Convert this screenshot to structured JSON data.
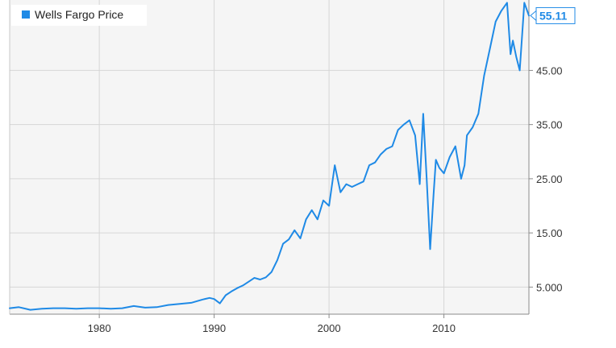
{
  "colors": {
    "line": "#1f8ae6",
    "plot_bg": "#f5f5f5",
    "grid": "#d6d6d6",
    "frame": "#8a8a8a"
  },
  "chart_data": {
    "type": "line",
    "title": "",
    "xlabel": "",
    "ylabel": "",
    "legend": {
      "position": "top-left",
      "entries": [
        "Wells Fargo Price"
      ]
    },
    "grid": true,
    "xlim": [
      1972.2,
      2017.4
    ],
    "ylim": [
      0,
      58
    ],
    "x_ticks": [
      1980,
      1990,
      2000,
      2010
    ],
    "x_tick_labels": [
      "1980",
      "1990",
      "2000",
      "2010"
    ],
    "y_ticks": [
      5,
      15,
      25,
      35,
      45
    ],
    "y_tick_labels": [
      "5.000",
      "15.00",
      "25.00",
      "35.00",
      "45.00"
    ],
    "last_value_label": "55.11",
    "series": [
      {
        "name": "Wells Fargo Price",
        "x": [
          1972.2,
          1973.0,
          1974.0,
          1975.0,
          1976.0,
          1977.0,
          1978.0,
          1979.0,
          1980.0,
          1981.0,
          1982.0,
          1983.0,
          1984.0,
          1985.0,
          1986.0,
          1987.0,
          1988.0,
          1989.0,
          1989.6,
          1990.0,
          1990.5,
          1991.0,
          1991.5,
          1992.0,
          1992.5,
          1993.0,
          1993.5,
          1994.0,
          1994.5,
          1995.0,
          1995.5,
          1996.0,
          1996.5,
          1997.0,
          1997.5,
          1998.0,
          1998.5,
          1999.0,
          1999.5,
          2000.0,
          2000.5,
          2001.0,
          2001.5,
          2002.0,
          2002.5,
          2003.0,
          2003.5,
          2004.0,
          2004.5,
          2005.0,
          2005.5,
          2006.0,
          2006.5,
          2007.0,
          2007.5,
          2007.9,
          2008.2,
          2008.5,
          2008.8,
          2009.1,
          2009.3,
          2009.6,
          2010.0,
          2010.5,
          2011.0,
          2011.5,
          2011.8,
          2012.0,
          2012.5,
          2013.0,
          2013.5,
          2014.0,
          2014.5,
          2015.0,
          2015.5,
          2015.8,
          2016.0,
          2016.3,
          2016.6,
          2017.0,
          2017.4
        ],
        "y": [
          1.1,
          1.3,
          0.8,
          1.0,
          1.1,
          1.1,
          1.0,
          1.1,
          1.1,
          1.0,
          1.1,
          1.5,
          1.2,
          1.3,
          1.7,
          1.9,
          2.1,
          2.7,
          3.0,
          2.8,
          2.0,
          3.5,
          4.2,
          4.8,
          5.3,
          6.0,
          6.7,
          6.4,
          6.8,
          7.8,
          10.0,
          13.0,
          13.8,
          15.5,
          14.0,
          17.5,
          19.2,
          17.5,
          21.0,
          20.0,
          27.5,
          22.5,
          24.0,
          23.5,
          24.0,
          24.5,
          27.5,
          28.0,
          29.5,
          30.5,
          31.0,
          34.0,
          35.0,
          35.8,
          33.0,
          24.0,
          37.0,
          25.0,
          12.0,
          22.0,
          28.5,
          27.0,
          26.0,
          29.0,
          31.0,
          25.0,
          27.5,
          33.0,
          34.5,
          37.0,
          44.0,
          49.0,
          54.0,
          56.0,
          57.5,
          48.0,
          50.5,
          47.5,
          45.0,
          57.5,
          55.11
        ]
      }
    ]
  }
}
